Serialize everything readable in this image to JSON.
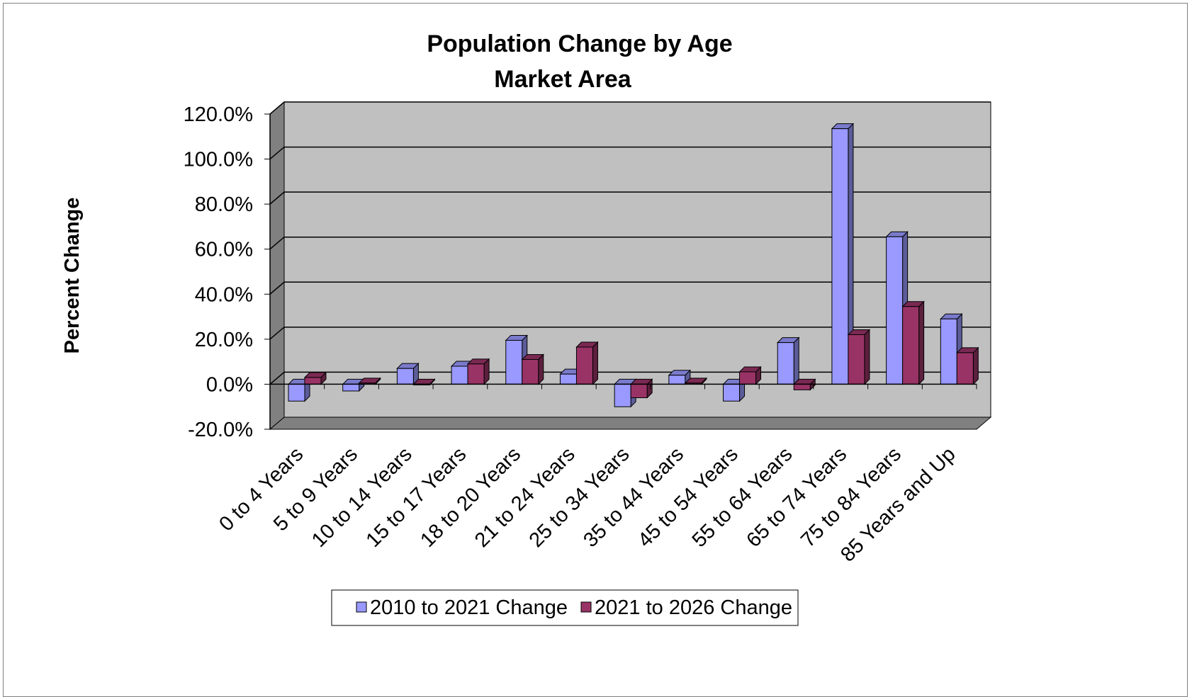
{
  "chart_data": {
    "type": "bar",
    "title": "Population Change by Age",
    "subtitle": "Market Area",
    "xlabel": "",
    "ylabel": "Percent Change",
    "ylim": [
      -20,
      120
    ],
    "yticks": [
      "120.0%",
      "100.0%",
      "80.0%",
      "60.0%",
      "40.0%",
      "20.0%",
      "0.0%",
      "-20.0%"
    ],
    "ytick_values": [
      120,
      100,
      80,
      60,
      40,
      20,
      0,
      -20
    ],
    "grid": true,
    "legend": "bottom",
    "categories": [
      "0 to 4 Years",
      "5 to 9 Years",
      "10 to 14 Years",
      "15 to 17 Years",
      "18 to 20 Years",
      "21 to 24 Years",
      "25 to 34 Years",
      "35 to 44 Years",
      "45 to 54 Years",
      "55 to 64 Years",
      "65 to 74 Years",
      "75 to 84 Years",
      "85 Years and Up"
    ],
    "series": [
      {
        "name": "2010 to 2021 Change",
        "color": "#9999ff",
        "values": [
          -7.5,
          -3.0,
          7.0,
          8.0,
          19.5,
          4.5,
          -10.0,
          4.0,
          -7.5,
          18.5,
          113.5,
          65.5,
          29.0
        ]
      },
      {
        "name": "2021 to 2026 Change",
        "color": "#993366",
        "values": [
          3.0,
          0.5,
          0.0,
          9.0,
          11.0,
          16.5,
          -6.0,
          0.5,
          5.5,
          -2.5,
          22.0,
          34.5,
          14.0
        ]
      }
    ]
  }
}
